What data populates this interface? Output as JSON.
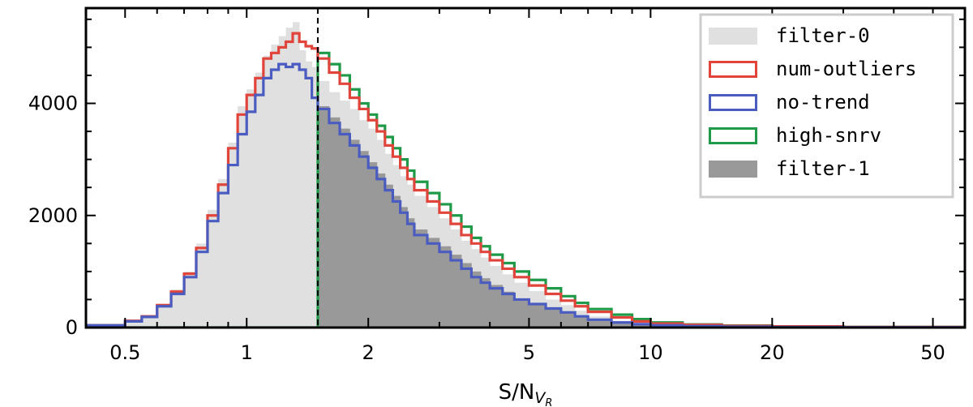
{
  "chart_data": {
    "type": "histogram",
    "x_scale": "log",
    "xlim": [
      0.4,
      60
    ],
    "ylim": [
      0,
      5700
    ],
    "xlabel_main": "S/N",
    "xlabel_sub": "V",
    "xlabel_subsub": "R",
    "ylabel": "",
    "x_ticks": [
      {
        "value": 0.5,
        "label": "0.5"
      },
      {
        "value": 1,
        "label": "1"
      },
      {
        "value": 2,
        "label": "2"
      },
      {
        "value": 5,
        "label": "5"
      },
      {
        "value": 10,
        "label": "10"
      },
      {
        "value": 20,
        "label": "20"
      },
      {
        "value": 50,
        "label": "50"
      }
    ],
    "y_ticks": [
      {
        "value": 0,
        "label": "0"
      },
      {
        "value": 2000,
        "label": "2000"
      },
      {
        "value": 4000,
        "label": "4000"
      }
    ],
    "cut_value": 1.5,
    "cut_line": {
      "style": "dashed",
      "color": "#000000"
    },
    "bin_edges": [
      0.4,
      0.5,
      0.55,
      0.6,
      0.65,
      0.7,
      0.75,
      0.8,
      0.85,
      0.9,
      0.95,
      1.0,
      1.05,
      1.1,
      1.15,
      1.2,
      1.25,
      1.3,
      1.35,
      1.4,
      1.45,
      1.5,
      1.6,
      1.7,
      1.8,
      1.9,
      2.0,
      2.1,
      2.2,
      2.3,
      2.4,
      2.5,
      2.6,
      2.8,
      3.0,
      3.2,
      3.4,
      3.6,
      3.8,
      4.0,
      4.3,
      4.6,
      5.0,
      5.5,
      6.0,
      6.5,
      7.0,
      8.0,
      9.0,
      10.0,
      12.0,
      15.0,
      20.0,
      30.0,
      60.0
    ],
    "series": [
      {
        "name": "filter-0",
        "style": "filled",
        "color": "#e0e0e0",
        "values": [
          50,
          130,
          220,
          420,
          680,
          1000,
          1500,
          2100,
          2650,
          3300,
          3950,
          4250,
          4550,
          4850,
          5050,
          5200,
          5350,
          5450,
          4950,
          4750,
          4650,
          4400,
          4200,
          4050,
          3900,
          3700,
          3550,
          3350,
          3100,
          2900,
          2700,
          2550,
          2350,
          2150,
          1950,
          1750,
          1550,
          1400,
          1250,
          1100,
          950,
          800,
          650,
          500,
          400,
          300,
          200,
          120,
          80,
          50,
          30,
          20,
          10,
          5
        ]
      },
      {
        "name": "num-outliers",
        "style": "step",
        "color": "#e0443a",
        "values": [
          40,
          120,
          200,
          400,
          640,
          960,
          1420,
          2000,
          2550,
          3200,
          3800,
          4150,
          4450,
          4800,
          4900,
          5000,
          5100,
          5250,
          5100,
          5020,
          4980,
          4800,
          4550,
          4350,
          4100,
          3900,
          3700,
          3500,
          3250,
          3050,
          2850,
          2650,
          2450,
          2250,
          2050,
          1850,
          1650,
          1500,
          1350,
          1200,
          1050,
          900,
          750,
          600,
          480,
          380,
          280,
          180,
          110,
          70,
          50,
          30,
          20,
          10
        ]
      },
      {
        "name": "no-trend",
        "style": "step",
        "color": "#4a5cc0",
        "values": [
          40,
          110,
          190,
          380,
          600,
          900,
          1350,
          1900,
          2400,
          2900,
          3450,
          3850,
          4150,
          4450,
          4600,
          4700,
          4650,
          4700,
          4600,
          4450,
          4100,
          3900,
          3650,
          3450,
          3250,
          3050,
          2850,
          2650,
          2450,
          2250,
          2050,
          1850,
          1650,
          1500,
          1350,
          1200,
          1050,
          900,
          800,
          700,
          600,
          500,
          420,
          340,
          270,
          200,
          140,
          90,
          60,
          40,
          25,
          15,
          8,
          4
        ]
      },
      {
        "name": "high-snrv",
        "style": "step",
        "color": "#1f9a48",
        "values": [
          0,
          0,
          0,
          0,
          0,
          0,
          0,
          0,
          0,
          0,
          0,
          0,
          0,
          0,
          0,
          0,
          0,
          0,
          0,
          0,
          0,
          4900,
          4700,
          4500,
          4250,
          4000,
          3800,
          3600,
          3400,
          3200,
          3000,
          2800,
          2600,
          2400,
          2200,
          2000,
          1800,
          1600,
          1450,
          1300,
          1150,
          1000,
          850,
          700,
          560,
          440,
          330,
          230,
          150,
          90,
          55,
          35,
          20,
          10
        ]
      },
      {
        "name": "filter-1",
        "style": "filled",
        "color": "#999999",
        "values": [
          0,
          0,
          0,
          0,
          0,
          0,
          0,
          0,
          0,
          0,
          0,
          0,
          0,
          0,
          0,
          0,
          0,
          0,
          0,
          0,
          0,
          3950,
          3750,
          3550,
          3350,
          3150,
          2950,
          2750,
          2550,
          2350,
          2150,
          1950,
          1750,
          1600,
          1450,
          1300,
          1150,
          1000,
          880,
          760,
          640,
          520,
          420,
          330,
          260,
          190,
          130,
          80,
          50,
          30,
          20,
          12,
          6,
          3
        ]
      }
    ]
  },
  "legend": {
    "items": [
      {
        "label": "filter-0",
        "style": "filled",
        "color": "#e0e0e0"
      },
      {
        "label": "num-outliers",
        "style": "outline",
        "color": "#e0443a"
      },
      {
        "label": "no-trend",
        "style": "outline",
        "color": "#4a5cc0"
      },
      {
        "label": "high-snrv",
        "style": "outline",
        "color": "#1f9a48"
      },
      {
        "label": "filter-1",
        "style": "filled",
        "color": "#999999"
      }
    ]
  }
}
